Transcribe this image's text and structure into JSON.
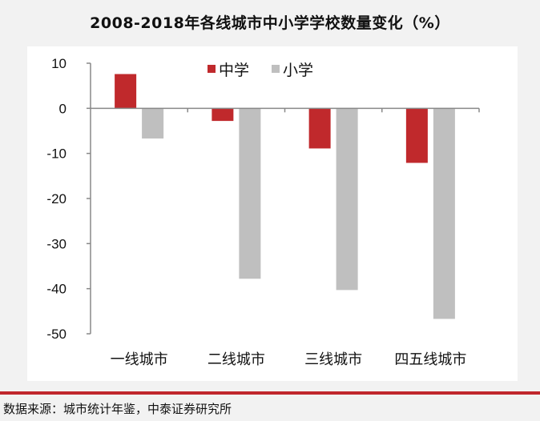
{
  "chart_data": {
    "type": "bar",
    "title": "2008-2018年各线城市中小学学校数量变化（%）",
    "categories": [
      "一线城市",
      "二线城市",
      "三线城市",
      "四五线城市"
    ],
    "series": [
      {
        "name": "中学",
        "color": "#c0292c",
        "values": [
          7.6,
          -2.8,
          -8.9,
          -12.1
        ]
      },
      {
        "name": "小学",
        "color": "#bfbfbf",
        "values": [
          -6.7,
          -37.8,
          -40.3,
          -46.7
        ]
      }
    ],
    "ylim": [
      -50,
      10
    ],
    "yticks": [
      10,
      0,
      -10,
      -20,
      -30,
      -40,
      -50
    ],
    "legend": "top-center",
    "xlabel": "",
    "ylabel": ""
  },
  "source": "数据来源：城市统计年鉴，中泰证券研究所"
}
